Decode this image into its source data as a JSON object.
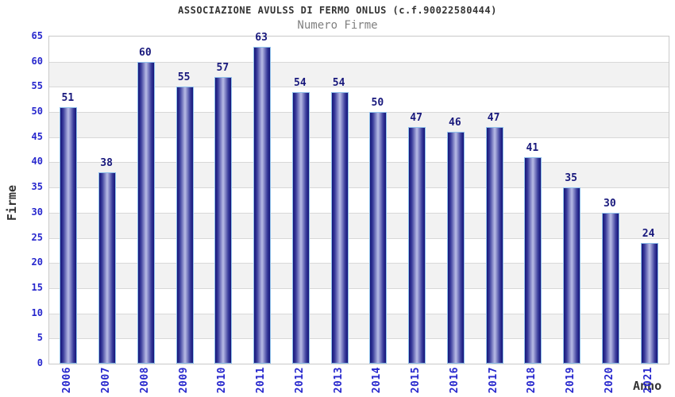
{
  "chart_data": {
    "type": "bar",
    "title": "ASSOCIAZIONE AVULSS DI FERMO ONLUS (c.f.90022580444)",
    "subtitle": "Numero Firme",
    "xlabel": "Anno",
    "ylabel": "Firme",
    "categories": [
      "2006",
      "2007",
      "2008",
      "2009",
      "2010",
      "2011",
      "2012",
      "2013",
      "2014",
      "2015",
      "2016",
      "2017",
      "2018",
      "2019",
      "2020",
      "2021"
    ],
    "values": [
      51,
      38,
      60,
      55,
      57,
      63,
      54,
      54,
      50,
      47,
      46,
      47,
      41,
      35,
      30,
      24
    ],
    "ylim": [
      0,
      65
    ],
    "ytick_step": 5,
    "grid": true,
    "legend": "none",
    "layout": {
      "x_tick_rotation_deg": 90,
      "alternating_bands": true
    },
    "colors": {
      "title": "#333333",
      "subtitle": "#808080",
      "tick_label": "#2727cd",
      "value_label": "#18187c",
      "axis_title": "#333333",
      "bar_dark": "#141478",
      "bar_mid": "#3a3d9c",
      "bar_light": "#b2b5e2",
      "bar_border": "#8fc0ea",
      "band_gray": "#f2f2f2",
      "gridline": "#d8d8d8",
      "plot_border": "#c9c9c9",
      "background": "#ffffff"
    }
  }
}
